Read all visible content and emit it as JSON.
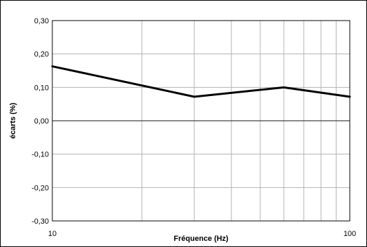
{
  "chart_data": {
    "type": "line",
    "title": "",
    "xlabel": "Fréquence (Hz)",
    "ylabel": "écarts (%)",
    "x_scale": "log",
    "xlim": [
      10,
      100
    ],
    "ylim": [
      -0.3,
      0.3
    ],
    "grid": true,
    "x_ticks": [
      {
        "value": 10,
        "label": "10"
      },
      {
        "value": 100,
        "label": "100"
      }
    ],
    "y_ticks": [
      {
        "value": 0.3,
        "label": "0,30"
      },
      {
        "value": 0.2,
        "label": "0,20"
      },
      {
        "value": 0.1,
        "label": "0,10"
      },
      {
        "value": 0.0,
        "label": "0,00"
      },
      {
        "value": -0.1,
        "label": "-0,10"
      },
      {
        "value": -0.2,
        "label": "-0,20"
      },
      {
        "value": -0.3,
        "label": "-0,30"
      }
    ],
    "series": [
      {
        "points": [
          {
            "x": 10,
            "y": 0.163
          },
          {
            "x": 30,
            "y": 0.072
          },
          {
            "x": 60,
            "y": 0.1
          },
          {
            "x": 100,
            "y": 0.072
          }
        ]
      }
    ],
    "colors": {
      "line": "#000000",
      "grid": "#b3b3b3",
      "zero_line": "#404040",
      "frame": "#000000"
    }
  }
}
